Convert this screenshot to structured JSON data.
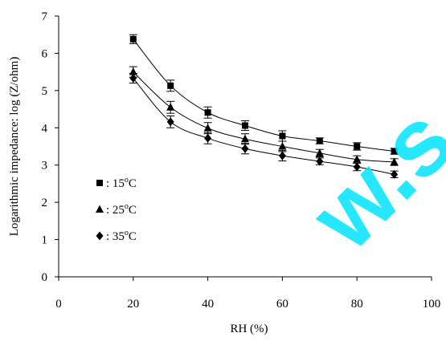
{
  "chart_data": {
    "type": "line",
    "title": "",
    "xlabel": "RH (%)",
    "ylabel": "Logarithmic impedance: log (Z/ohm)",
    "xlim": [
      0,
      100
    ],
    "ylim": [
      0,
      7
    ],
    "xticks": [
      "0",
      "20",
      "40",
      "60",
      "80",
      "100"
    ],
    "yticks": [
      "0",
      "1",
      "2",
      "3",
      "4",
      "5",
      "6",
      "7"
    ],
    "grid": false,
    "legend_position": "lower-left",
    "x": [
      20,
      30,
      40,
      50,
      60,
      70,
      80,
      90
    ],
    "series": [
      {
        "name": "15°C",
        "legend_label": ": 15",
        "marker": "square",
        "values": [
          6.38,
          5.13,
          4.41,
          4.06,
          3.78,
          3.65,
          3.5,
          3.37
        ],
        "errors": [
          0.12,
          0.15,
          0.15,
          0.13,
          0.14,
          0.08,
          0.1,
          0.08
        ]
      },
      {
        "name": "25°C",
        "legend_label": ": 25",
        "marker": "triangle",
        "values": [
          5.5,
          4.55,
          3.99,
          3.7,
          3.5,
          3.32,
          3.15,
          3.08
        ],
        "errors": [
          0.14,
          0.16,
          0.15,
          0.14,
          0.14,
          0.1,
          0.1,
          0.09
        ]
      },
      {
        "name": "35°C",
        "legend_label": ": 35",
        "marker": "diamond",
        "values": [
          5.33,
          4.16,
          3.72,
          3.44,
          3.25,
          3.1,
          2.95,
          2.75
        ],
        "errors": [
          0.13,
          0.16,
          0.15,
          0.14,
          0.14,
          0.09,
          0.1,
          0.09
        ]
      }
    ],
    "legend_unit": "C"
  },
  "watermark_text": "w.s",
  "colors": {
    "ink": "#000000",
    "watermark": "#00e5ff"
  }
}
